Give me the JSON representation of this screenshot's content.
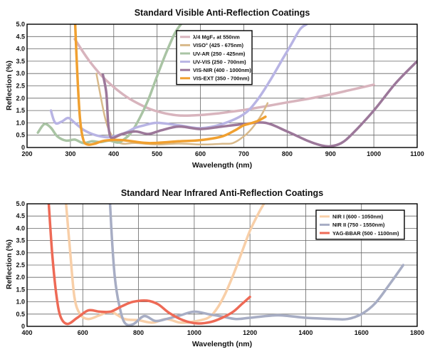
{
  "chart_data": [
    {
      "type": "line",
      "title": "Standard Visible Anti-Reflection Coatings",
      "xlabel": "Wavelength (nm)",
      "ylabel": "Reflection (%)",
      "xlim": [
        200,
        1100
      ],
      "ylim": [
        0,
        5.0
      ],
      "xticks": [
        "200",
        "300",
        "400",
        "500",
        "600",
        "700",
        "800",
        "900",
        "1000",
        "1100"
      ],
      "yticks": [
        "0",
        "0.5",
        "1.0",
        "1.5",
        "2.0",
        "2.5",
        "3.0",
        "3.5",
        "4.0",
        "4.5",
        "5.0"
      ],
      "grid": true,
      "legend_position": "top-center",
      "series": [
        {
          "name": "λ/4 MgF₂ at 550nm",
          "color": "#d8b4bd",
          "width": 3.5,
          "x": [
            310,
            340,
            370,
            400,
            430,
            460,
            490,
            520,
            550,
            580,
            610,
            640,
            670,
            700,
            750,
            800,
            850,
            900,
            950,
            1000
          ],
          "y": [
            4.4,
            3.6,
            2.95,
            2.45,
            2.05,
            1.75,
            1.52,
            1.38,
            1.3,
            1.3,
            1.33,
            1.38,
            1.45,
            1.52,
            1.67,
            1.83,
            1.98,
            2.15,
            2.35,
            2.55
          ]
        },
        {
          "name": "VISO° (425 - 675nm)",
          "color": "#d8b98a",
          "width": 2.5,
          "x": [
            360,
            380,
            395,
            410,
            425,
            450,
            500,
            550,
            600,
            650,
            675,
            700,
            720,
            740,
            755
          ],
          "y": [
            3.0,
            1.2,
            0.5,
            0.22,
            0.15,
            0.18,
            0.12,
            0.16,
            0.12,
            0.15,
            0.18,
            0.45,
            0.8,
            1.3,
            1.8
          ]
        },
        {
          "name": "UV-AR (250 - 425nm)",
          "color": "#a9c4a4",
          "width": 3.5,
          "x": [
            225,
            240,
            255,
            270,
            290,
            310,
            330,
            350,
            370,
            390,
            410,
            425,
            440,
            460,
            480,
            500,
            520,
            540,
            555
          ],
          "y": [
            0.6,
            0.95,
            0.8,
            0.45,
            0.28,
            0.32,
            0.18,
            0.25,
            0.22,
            0.28,
            0.2,
            0.35,
            0.6,
            1.2,
            1.95,
            2.9,
            3.8,
            4.6,
            5.0
          ]
        },
        {
          "name": "UV-VIS (250 - 700nm)",
          "color": "#b8b4e4",
          "width": 3.5,
          "x": [
            255,
            265,
            280,
            295,
            310,
            330,
            350,
            370,
            390,
            410,
            430,
            450,
            470,
            500,
            550,
            600,
            650,
            700,
            730,
            760,
            790,
            810,
            830,
            845
          ],
          "y": [
            1.5,
            1.0,
            1.05,
            1.2,
            1.0,
            0.72,
            0.55,
            0.45,
            0.42,
            0.5,
            0.62,
            0.8,
            0.9,
            1.0,
            0.9,
            0.78,
            0.95,
            1.35,
            1.9,
            2.7,
            3.6,
            4.2,
            4.8,
            5.0
          ]
        },
        {
          "name": "VIS-NIR (400 - 1000nm)",
          "color": "#9c789a",
          "width": 3.5,
          "x": [
            375,
            383,
            387,
            392,
            400,
            420,
            450,
            480,
            510,
            550,
            600,
            650,
            700,
            750,
            800,
            850,
            880,
            900,
            925,
            950,
            1000,
            1050,
            1100
          ],
          "y": [
            2.95,
            2.2,
            1.0,
            0.45,
            0.4,
            0.55,
            0.65,
            0.55,
            0.7,
            0.85,
            0.75,
            0.85,
            0.95,
            1.0,
            0.65,
            0.25,
            0.08,
            0.05,
            0.18,
            0.55,
            1.5,
            2.6,
            3.5
          ]
        },
        {
          "name": "VIS-EXT (350 - 700nm)",
          "color": "#f0a030",
          "width": 3.5,
          "x": [
            311,
            316,
            322,
            330,
            340,
            355,
            380,
            420,
            480,
            550,
            600,
            650,
            680,
            700,
            720,
            735,
            750
          ],
          "y": [
            5.0,
            3.0,
            1.2,
            0.3,
            0.12,
            0.15,
            0.28,
            0.3,
            0.18,
            0.25,
            0.3,
            0.45,
            0.7,
            0.9,
            1.0,
            1.1,
            1.25
          ]
        }
      ]
    },
    {
      "type": "line",
      "title": "Standard Near Infrared Anti-Reflection Coatings",
      "xlabel": "Wavelength (nm)",
      "ylabel": "Reflection (%)",
      "xlim": [
        400,
        1800
      ],
      "ylim": [
        0,
        5.0
      ],
      "xticks": [
        "400",
        "600",
        "800",
        "1000",
        "1200",
        "1400",
        "1600",
        "1800"
      ],
      "yticks": [
        "0",
        "0.5",
        "1.0",
        "1.5",
        "2.0",
        "2.5",
        "3.0",
        "3.5",
        "4.0",
        "4.5",
        "5.0"
      ],
      "grid": true,
      "legend_position": "top-right",
      "series": [
        {
          "name": "NIR I (600 - 1050nm)",
          "color": "#f8cfa8",
          "width": 3.5,
          "x": [
            540,
            555,
            570,
            590,
            620,
            660,
            700,
            750,
            800,
            850,
            900,
            950,
            1000,
            1050,
            1080,
            1110,
            1140,
            1170,
            1200,
            1230,
            1250
          ],
          "y": [
            5.0,
            3.0,
            1.2,
            0.5,
            0.3,
            0.45,
            0.6,
            0.3,
            0.25,
            0.15,
            0.3,
            0.15,
            0.2,
            0.35,
            0.7,
            1.3,
            2.1,
            3.0,
            3.9,
            4.6,
            5.0
          ]
        },
        {
          "name": "NIR II (750 - 1550nm)",
          "color": "#a7adc4",
          "width": 3.5,
          "x": [
            698,
            705,
            715,
            730,
            750,
            780,
            820,
            860,
            900,
            950,
            1000,
            1050,
            1100,
            1150,
            1200,
            1300,
            1400,
            1500,
            1550,
            1600,
            1650,
            1700,
            1750
          ],
          "y": [
            5.0,
            3.5,
            2.0,
            0.9,
            0.15,
            0.08,
            0.42,
            0.22,
            0.3,
            0.45,
            0.6,
            0.5,
            0.4,
            0.3,
            0.35,
            0.45,
            0.35,
            0.3,
            0.3,
            0.5,
            0.95,
            1.7,
            2.5
          ]
        },
        {
          "name": "YAG-BBAR (500 - 1100nm)",
          "color": "#ee6a56",
          "width": 3.5,
          "x": [
            478,
            490,
            505,
            520,
            545,
            580,
            620,
            660,
            700,
            740,
            780,
            830,
            870,
            910,
            960,
            1010,
            1060,
            1100,
            1140,
            1170,
            1200
          ],
          "y": [
            5.0,
            3.0,
            1.3,
            0.4,
            0.1,
            0.35,
            0.65,
            0.6,
            0.6,
            0.82,
            1.0,
            1.05,
            0.9,
            0.55,
            0.25,
            0.12,
            0.18,
            0.35,
            0.6,
            0.9,
            1.2
          ]
        }
      ]
    }
  ]
}
